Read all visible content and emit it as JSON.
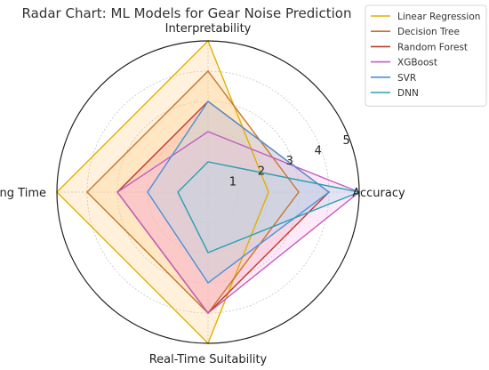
{
  "chart_data": {
    "type": "radar",
    "title": "Radar Chart: ML Models for Gear Noise Prediction",
    "axes": [
      "Accuracy",
      "Interpretability",
      "Training Time",
      "Real-Time Suitability"
    ],
    "rlim": [
      0,
      5
    ],
    "rticks": [
      1,
      2,
      3,
      4,
      5
    ],
    "grid": true,
    "legend_position": "top-right",
    "series": [
      {
        "name": "Linear Regression",
        "color": "#e0b000",
        "fill": "#ffd08a",
        "values": [
          2,
          5,
          5,
          5
        ]
      },
      {
        "name": "Decision Tree",
        "color": "#c8742a",
        "fill": "#ffd08a",
        "values": [
          3,
          4,
          4,
          4
        ]
      },
      {
        "name": "Random Forest",
        "color": "#c0392b",
        "fill": "#f4a3a3",
        "values": [
          4,
          3,
          3,
          4
        ]
      },
      {
        "name": "XGBoost",
        "color": "#c05ec0",
        "fill": "#f7b6e8",
        "values": [
          5,
          2,
          3,
          4
        ]
      },
      {
        "name": "SVR",
        "color": "#4a90d9",
        "fill": "#a9d8f0",
        "values": [
          4,
          3,
          2,
          3
        ]
      },
      {
        "name": "DNN",
        "color": "#2a9fb0",
        "fill": "#a9d8f0",
        "values": [
          5,
          1,
          1,
          2
        ]
      }
    ]
  }
}
